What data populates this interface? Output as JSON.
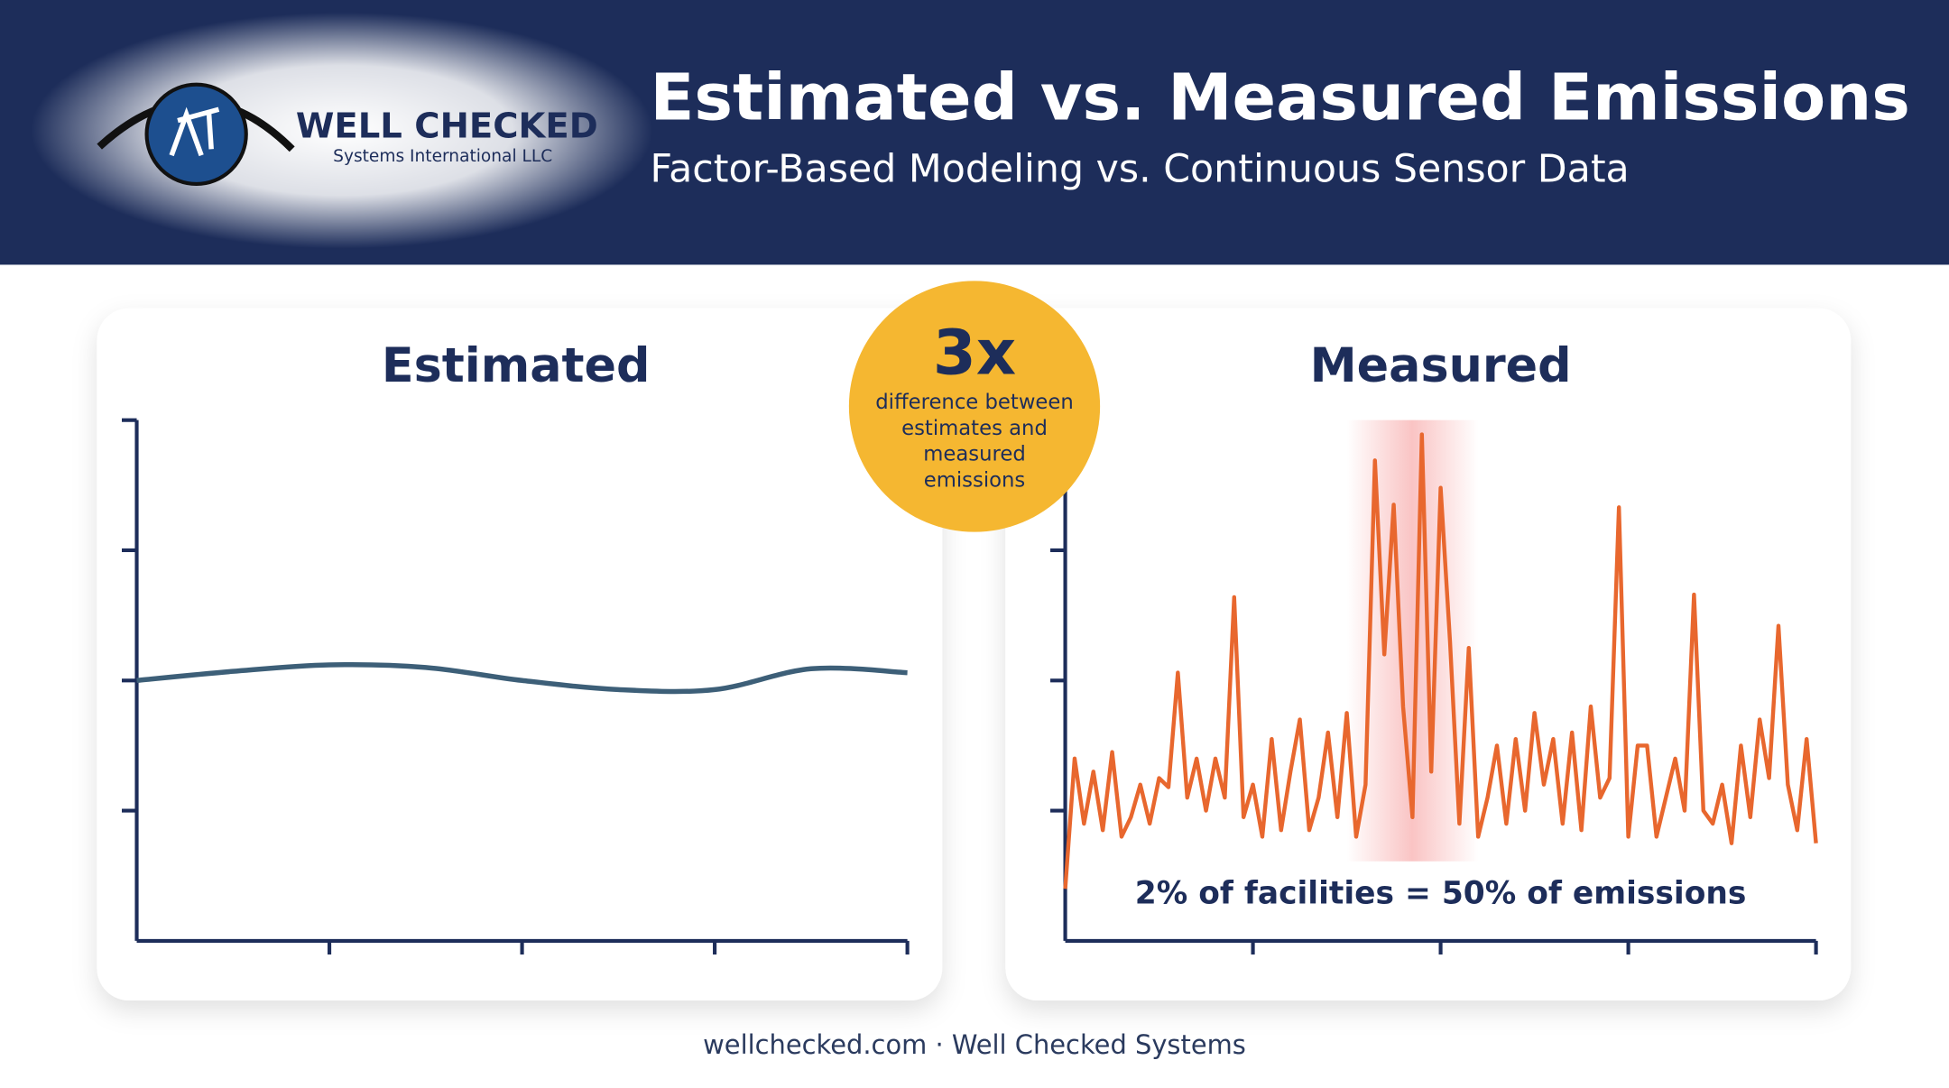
{
  "header": {
    "logo_name": "WELL CHECKED",
    "logo_sub": "Systems International LLC",
    "title": "Estimated vs. Measured Emissions",
    "subtitle": "Factor-Based Modeling vs. Continuous Sensor Data"
  },
  "callout": {
    "value": "3x",
    "lines": [
      "difference between",
      "estimates and",
      "measured",
      "emissions"
    ]
  },
  "footer": "wellchecked.com · Well Checked Systems",
  "chart_data": [
    {
      "type": "line",
      "title": "Estimated",
      "color": "#3d5f78",
      "smooth": true,
      "x": [
        0,
        0.5,
        1,
        1.5,
        2,
        2.5,
        3,
        3.5,
        4
      ],
      "values": [
        2.0,
        2.07,
        2.12,
        2.1,
        2.0,
        1.93,
        1.93,
        2.09,
        2.06
      ],
      "xlim": [
        0,
        4
      ],
      "ylim": [
        0,
        4
      ],
      "xticks": [
        1,
        2,
        3,
        4
      ],
      "yticks": [
        1,
        2,
        3,
        4
      ]
    },
    {
      "type": "line",
      "title": "Measured",
      "color": "#e8672e",
      "smooth": false,
      "x": [
        0,
        0.05,
        0.1,
        0.15,
        0.2,
        0.25,
        0.3,
        0.35,
        0.4,
        0.45,
        0.5,
        0.55,
        0.6,
        0.65,
        0.7,
        0.75,
        0.8,
        0.85,
        0.9,
        0.95,
        1,
        1.05,
        1.1,
        1.15,
        1.2,
        1.25,
        1.3,
        1.35,
        1.4,
        1.45,
        1.5,
        1.55,
        1.6,
        1.65,
        1.7,
        1.75,
        1.8,
        1.85,
        1.9,
        1.95,
        2,
        2.05,
        2.1,
        2.15,
        2.2,
        2.25,
        2.3,
        2.35,
        2.4,
        2.45,
        2.5,
        2.55,
        2.6,
        2.65,
        2.7,
        2.75,
        2.8,
        2.85,
        2.9,
        2.95,
        3,
        3.05,
        3.1,
        3.15,
        3.2,
        3.25,
        3.3,
        3.35,
        3.4,
        3.45,
        3.5,
        3.55,
        3.6,
        3.65,
        3.7,
        3.75,
        3.8,
        3.85,
        3.9,
        3.95,
        4
      ],
      "values": [
        0.4,
        1.4,
        0.9,
        1.3,
        0.85,
        1.45,
        0.8,
        0.95,
        1.2,
        0.9,
        1.25,
        1.18,
        2.06,
        1.1,
        1.4,
        1.0,
        1.4,
        1.1,
        2.64,
        0.95,
        1.2,
        0.8,
        1.55,
        0.85,
        1.3,
        1.7,
        0.85,
        1.1,
        1.6,
        0.95,
        1.75,
        0.8,
        1.2,
        3.69,
        2.2,
        3.35,
        1.8,
        0.95,
        3.89,
        1.3,
        3.48,
        2.3,
        0.9,
        2.25,
        0.8,
        1.1,
        1.5,
        0.9,
        1.55,
        1.0,
        1.75,
        1.2,
        1.55,
        0.9,
        1.6,
        0.85,
        1.8,
        1.1,
        1.25,
        3.33,
        0.8,
        1.5,
        1.5,
        0.8,
        1.1,
        1.4,
        1.0,
        2.66,
        1.0,
        0.9,
        1.2,
        0.75,
        1.5,
        0.95,
        1.7,
        1.25,
        2.42,
        1.2,
        0.85,
        1.55,
        0.75
      ],
      "xlim": [
        0,
        4
      ],
      "ylim": [
        0,
        4
      ],
      "xticks": [
        1,
        2,
        3,
        4
      ],
      "yticks": [
        1,
        2,
        3,
        4
      ],
      "highlight": [
        1.5,
        2.2
      ],
      "annotation": "2% of facilities = 50% of emissions"
    }
  ]
}
